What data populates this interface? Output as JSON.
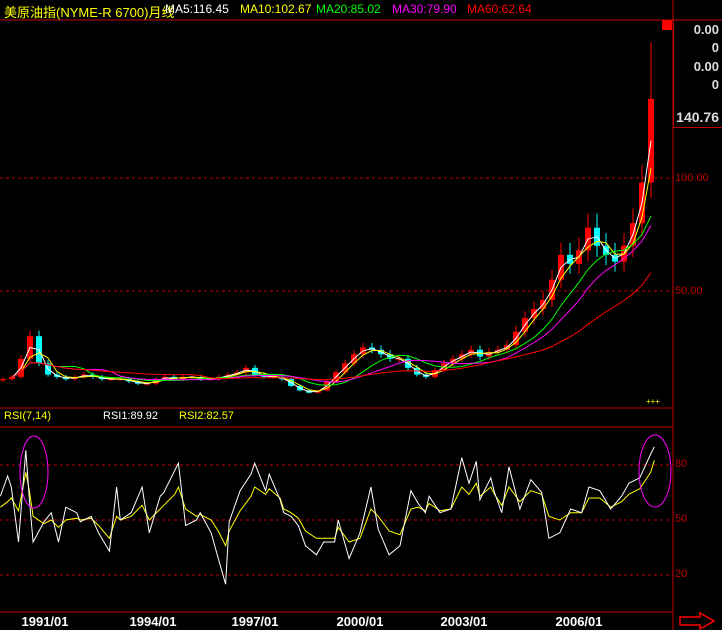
{
  "header": {
    "title": "美原油指(NYME-R 6700)月线",
    "ma5": "MA5:116.45",
    "ma10": "MA10:102.67",
    "ma20": "MA20:85.02",
    "ma30": "MA30:79.90",
    "ma60": "MA60:62.64"
  },
  "colors": {
    "ma5": "#ffffff",
    "ma10": "#ffff00",
    "ma20": "#00ff00",
    "ma30": "#ff00ff",
    "ma60": "#ff0000",
    "up": "#ff0000",
    "down": "#00ffff",
    "grid": "#c00000",
    "rsi1": "#ffffff",
    "rsi2": "#ffff00",
    "highlight": "#ff00ff"
  },
  "info_box": {
    "v1": "0.00",
    "v2": "0",
    "v3": "0.00",
    "v4": "0",
    "v5": "140.76"
  },
  "misc": {
    "marker": "+++"
  },
  "rsi_header": {
    "label": "RSI(7,14)",
    "rsi1": "RSI1:89.92",
    "rsi2": "RSI2:82.57"
  },
  "chart_data": [
    {
      "type": "candlestick",
      "title": "美原油指(NYME-R 6700)月线",
      "y_ticks": [
        "100.00",
        "50.00"
      ],
      "y_tick_values": [
        100,
        50
      ],
      "x_start": "1990/01",
      "x_step": "quarter",
      "close": [
        11,
        12,
        20,
        30,
        18,
        13,
        12,
        11,
        12,
        13,
        12,
        11,
        11,
        11,
        10,
        9,
        9,
        11,
        12,
        11,
        12,
        12,
        11,
        11,
        12,
        13,
        14,
        16,
        13,
        12,
        12,
        11,
        8,
        6,
        5,
        6,
        10,
        14,
        18,
        22,
        25,
        24,
        22,
        20,
        20,
        16,
        13,
        12,
        15,
        18,
        20,
        22,
        24,
        21,
        23,
        24,
        26,
        32,
        38,
        42,
        46,
        55,
        66,
        62,
        68,
        78,
        70,
        66,
        63,
        70,
        80,
        98,
        135
      ],
      "moving_averages": [
        "MA5",
        "MA10",
        "MA20",
        "MA30",
        "MA60"
      ]
    },
    {
      "type": "line",
      "title": "RSI(7,14)",
      "y_ticks": [
        "80",
        "50",
        "20"
      ],
      "y_tick_values": [
        80,
        50,
        20
      ],
      "ylim": [
        0,
        100
      ],
      "x_ticks": [
        "1991/01",
        "1994/01",
        "1997/01",
        "2000/01",
        "2003/01",
        "2006/01"
      ],
      "x": [
        1990.1,
        1990.3,
        1990.4,
        1990.6,
        1990.8,
        1990.9,
        1991.0,
        1991.3,
        1991.5,
        1991.7,
        1991.9,
        1992.2,
        1992.3,
        1992.6,
        1992.8,
        1993.1,
        1993.3,
        1993.4,
        1993.7,
        1994.0,
        1994.2,
        1994.5,
        1994.6,
        1994.9,
        1995.0,
        1995.2,
        1995.5,
        1995.6,
        1995.9,
        1996.1,
        1996.3,
        1996.4,
        1996.7,
        1997.0,
        1997.1,
        1997.4,
        1997.5,
        1997.8,
        1997.9,
        1998.1,
        1998.3,
        1998.5,
        1998.8,
        1999.0,
        1999.3,
        1999.4,
        1999.7,
        2000.0,
        2000.3,
        2000.5,
        2000.8,
        2001.1,
        2001.4,
        2001.6,
        2001.8,
        2001.9,
        2002.2,
        2002.5,
        2002.8,
        2003.0,
        2003.2,
        2003.3,
        2003.6,
        2003.7,
        2003.9,
        2004.1,
        2004.4,
        2004.7,
        2005.0,
        2005.2,
        2005.5,
        2005.8,
        2006.1,
        2006.3,
        2006.6,
        2006.9,
        2007.2,
        2007.4,
        2007.7,
        2008.0,
        2008.1
      ],
      "series": [
        {
          "name": "RSI1",
          "values": [
            63,
            74,
            68,
            38,
            88,
            61,
            38,
            49,
            54,
            38,
            57,
            54,
            49,
            52,
            43,
            33,
            68,
            50,
            54,
            68,
            43,
            63,
            65,
            77,
            81,
            47,
            50,
            54,
            43,
            29,
            15,
            49,
            66,
            75,
            81,
            66,
            75,
            61,
            54,
            52,
            47,
            36,
            31,
            38,
            38,
            50,
            29,
            43,
            68,
            45,
            31,
            36,
            66,
            59,
            54,
            63,
            54,
            56,
            84,
            70,
            82,
            61,
            73,
            65,
            54,
            79,
            56,
            72,
            65,
            40,
            43,
            56,
            54,
            68,
            66,
            56,
            63,
            70,
            73,
            86,
            89.92
          ]
        },
        {
          "name": "RSI2",
          "values": [
            57,
            60,
            62,
            55,
            76,
            66,
            52,
            48,
            50,
            46,
            50,
            51,
            50,
            51,
            47,
            40,
            52,
            50,
            52,
            58,
            50,
            56,
            58,
            64,
            68,
            56,
            52,
            53,
            50,
            44,
            36,
            44,
            55,
            63,
            68,
            64,
            67,
            62,
            56,
            54,
            51,
            44,
            40,
            40,
            40,
            46,
            38,
            40,
            56,
            52,
            44,
            42,
            56,
            57,
            55,
            59,
            55,
            56,
            68,
            64,
            70,
            63,
            68,
            64,
            58,
            68,
            60,
            66,
            64,
            52,
            50,
            54,
            54,
            62,
            62,
            57,
            60,
            64,
            67,
            76,
            82.57
          ]
        }
      ]
    }
  ]
}
